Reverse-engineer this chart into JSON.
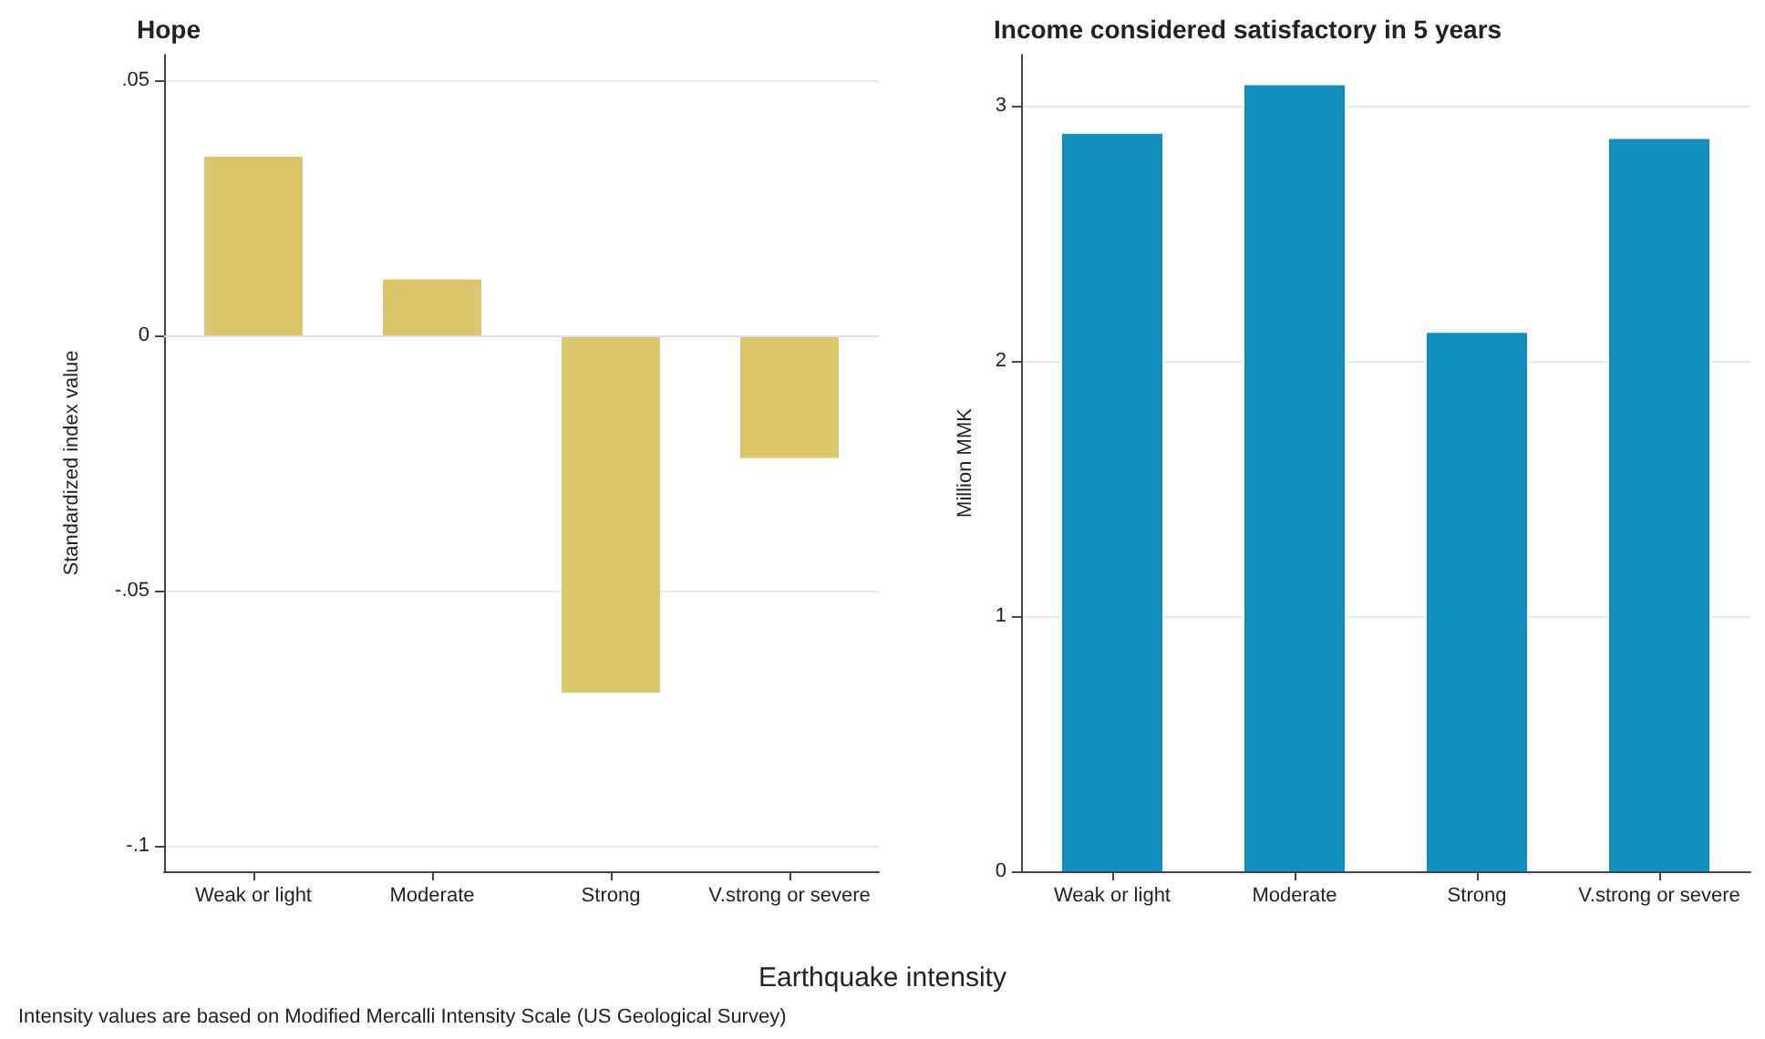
{
  "chart_data": [
    {
      "type": "bar",
      "title": "Hope",
      "ylabel": "Standardized index value",
      "xlabel": "Earthquake intensity",
      "annotations": [
        "Intensity values are based on Modified Mercalli Intensity Scale (US Geological Survey)"
      ],
      "categories": [
        "Weak or light",
        "Moderate",
        "Strong",
        "V.strong or severe"
      ],
      "series": [
        {
          "color": "#dac56b",
          "values": [
            0.035,
            0.011,
            -0.07,
            -0.024
          ]
        }
      ],
      "ylim": [
        -0.105,
        0.055
      ],
      "yticks": [
        {
          "value": 0.05,
          "label": ".05"
        },
        0,
        {
          "value": -0.05,
          "label": "-.05"
        },
        {
          "value": -0.1,
          "label": "-.1"
        }
      ],
      "grid": "y"
    },
    {
      "type": "bar",
      "title": "Income considered satisfactory in 5 years",
      "ylabel": "Million MMK",
      "categories": [
        "Weak or light",
        "Moderate",
        "Strong",
        "V.strong or severe"
      ],
      "series": [
        {
          "color": "#1190c0",
          "values": [
            2.89,
            3.08,
            2.11,
            2.87
          ]
        }
      ],
      "ylim": [
        0,
        3.2
      ],
      "yticks": [
        0,
        1,
        2,
        3
      ],
      "grid": "y"
    }
  ]
}
